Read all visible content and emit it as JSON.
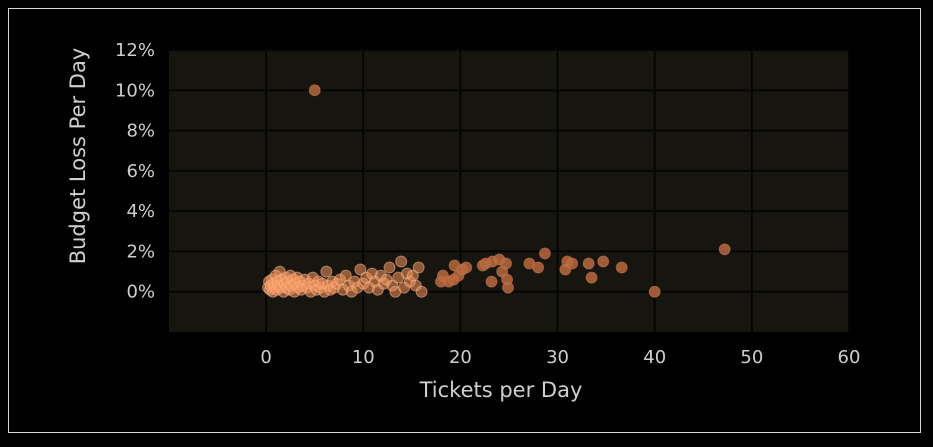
{
  "chart_data": {
    "type": "scatter",
    "title": "",
    "xlabel": "Tickets per Day",
    "ylabel": "Budget Loss Per Day",
    "xlim": [
      -10,
      60
    ],
    "ylim": [
      -2,
      12
    ],
    "x_ticks": [
      0,
      10,
      20,
      30,
      40,
      50,
      60
    ],
    "x_tick_labels": [
      "0",
      "10",
      "20",
      "30",
      "40",
      "50",
      "60"
    ],
    "y_ticks": [
      0,
      2,
      4,
      6,
      8,
      10,
      12
    ],
    "y_tick_labels": [
      "0%",
      "2%",
      "4%",
      "6%",
      "8%",
      "10%",
      "12%"
    ],
    "grid": true,
    "legend": "none",
    "colors": {
      "background": "#000000",
      "plot_bg": "#16150f",
      "grid": "#050505",
      "marker_dense": "#f4955e",
      "marker_sparse": "#b8683e",
      "text": "#cfcfcf"
    },
    "points": [
      {
        "x": 0.2,
        "y": 0.2
      },
      {
        "x": 0.3,
        "y": 0.5
      },
      {
        "x": 0.4,
        "y": 0.1
      },
      {
        "x": 0.5,
        "y": 0.3
      },
      {
        "x": 0.6,
        "y": 0.6
      },
      {
        "x": 0.7,
        "y": 0.0
      },
      {
        "x": 0.8,
        "y": 0.4
      },
      {
        "x": 0.9,
        "y": 0.2
      },
      {
        "x": 1.0,
        "y": 0.8
      },
      {
        "x": 1.1,
        "y": 0.1
      },
      {
        "x": 1.2,
        "y": 0.5
      },
      {
        "x": 1.3,
        "y": 0.3
      },
      {
        "x": 1.4,
        "y": 1.0
      },
      {
        "x": 1.5,
        "y": 0.2
      },
      {
        "x": 1.6,
        "y": 0.6
      },
      {
        "x": 1.8,
        "y": 0.0
      },
      {
        "x": 1.9,
        "y": 0.4
      },
      {
        "x": 2.0,
        "y": 0.7
      },
      {
        "x": 2.1,
        "y": 0.2
      },
      {
        "x": 2.2,
        "y": 0.5
      },
      {
        "x": 2.4,
        "y": 0.1
      },
      {
        "x": 2.5,
        "y": 0.8
      },
      {
        "x": 2.6,
        "y": 0.3
      },
      {
        "x": 2.8,
        "y": 0.6
      },
      {
        "x": 2.9,
        "y": 0.0
      },
      {
        "x": 3.0,
        "y": 0.4
      },
      {
        "x": 3.2,
        "y": 0.7
      },
      {
        "x": 3.3,
        "y": 0.2
      },
      {
        "x": 3.5,
        "y": 0.5
      },
      {
        "x": 3.6,
        "y": 0.1
      },
      {
        "x": 3.8,
        "y": 0.3
      },
      {
        "x": 4.0,
        "y": 0.6
      },
      {
        "x": 4.2,
        "y": 0.2
      },
      {
        "x": 4.4,
        "y": 0.4
      },
      {
        "x": 4.6,
        "y": 0.0
      },
      {
        "x": 4.8,
        "y": 0.7
      },
      {
        "x": 5.0,
        "y": 0.3
      },
      {
        "x": 5.2,
        "y": 0.1
      },
      {
        "x": 5.4,
        "y": 0.5
      },
      {
        "x": 5.6,
        "y": 0.2
      },
      {
        "x": 5.8,
        "y": 0.4
      },
      {
        "x": 6.0,
        "y": 0.0
      },
      {
        "x": 6.2,
        "y": 1.0
      },
      {
        "x": 6.4,
        "y": 0.3
      },
      {
        "x": 6.6,
        "y": 0.1
      },
      {
        "x": 6.8,
        "y": 0.5
      },
      {
        "x": 7.0,
        "y": 0.2
      },
      {
        "x": 7.3,
        "y": 0.4
      },
      {
        "x": 7.6,
        "y": 0.6
      },
      {
        "x": 7.9,
        "y": 0.1
      },
      {
        "x": 8.2,
        "y": 0.8
      },
      {
        "x": 8.5,
        "y": 0.3
      },
      {
        "x": 8.8,
        "y": 0.0
      },
      {
        "x": 9.1,
        "y": 0.5
      },
      {
        "x": 9.4,
        "y": 0.2
      },
      {
        "x": 9.7,
        "y": 1.1
      },
      {
        "x": 10.0,
        "y": 0.4
      },
      {
        "x": 10.3,
        "y": 0.7
      },
      {
        "x": 10.6,
        "y": 0.2
      },
      {
        "x": 10.9,
        "y": 0.9
      },
      {
        "x": 11.2,
        "y": 0.5
      },
      {
        "x": 11.5,
        "y": 0.1
      },
      {
        "x": 11.8,
        "y": 0.8
      },
      {
        "x": 12.1,
        "y": 0.4
      },
      {
        "x": 12.4,
        "y": 0.6
      },
      {
        "x": 12.7,
        "y": 1.2
      },
      {
        "x": 13.0,
        "y": 0.3
      },
      {
        "x": 13.3,
        "y": 0.0
      },
      {
        "x": 13.6,
        "y": 0.7
      },
      {
        "x": 13.9,
        "y": 1.5
      },
      {
        "x": 14.2,
        "y": 0.2
      },
      {
        "x": 14.5,
        "y": 0.9
      },
      {
        "x": 14.8,
        "y": 0.5
      },
      {
        "x": 15.1,
        "y": 0.8
      },
      {
        "x": 15.4,
        "y": 0.3
      },
      {
        "x": 15.7,
        "y": 1.2
      },
      {
        "x": 16.0,
        "y": 0.0
      },
      {
        "x": 5.0,
        "y": 10.0
      },
      {
        "x": 18.0,
        "y": 0.5
      },
      {
        "x": 18.2,
        "y": 0.8
      },
      {
        "x": 18.8,
        "y": 0.5
      },
      {
        "x": 19.3,
        "y": 0.6
      },
      {
        "x": 19.4,
        "y": 1.3
      },
      {
        "x": 19.8,
        "y": 0.8
      },
      {
        "x": 20.2,
        "y": 1.1
      },
      {
        "x": 20.6,
        "y": 1.2
      },
      {
        "x": 22.3,
        "y": 1.3
      },
      {
        "x": 22.6,
        "y": 1.4
      },
      {
        "x": 23.2,
        "y": 0.5
      },
      {
        "x": 23.3,
        "y": 1.5
      },
      {
        "x": 24.0,
        "y": 1.6
      },
      {
        "x": 24.3,
        "y": 1.0
      },
      {
        "x": 24.7,
        "y": 1.4
      },
      {
        "x": 24.8,
        "y": 0.6
      },
      {
        "x": 24.9,
        "y": 0.2
      },
      {
        "x": 27.1,
        "y": 1.4
      },
      {
        "x": 28.0,
        "y": 1.2
      },
      {
        "x": 28.7,
        "y": 1.9
      },
      {
        "x": 30.8,
        "y": 1.1
      },
      {
        "x": 31.0,
        "y": 1.5
      },
      {
        "x": 31.5,
        "y": 1.4
      },
      {
        "x": 33.2,
        "y": 1.4
      },
      {
        "x": 33.5,
        "y": 0.7
      },
      {
        "x": 34.7,
        "y": 1.5
      },
      {
        "x": 36.6,
        "y": 1.2
      },
      {
        "x": 40.0,
        "y": 0.0
      },
      {
        "x": 47.2,
        "y": 2.1
      }
    ]
  }
}
